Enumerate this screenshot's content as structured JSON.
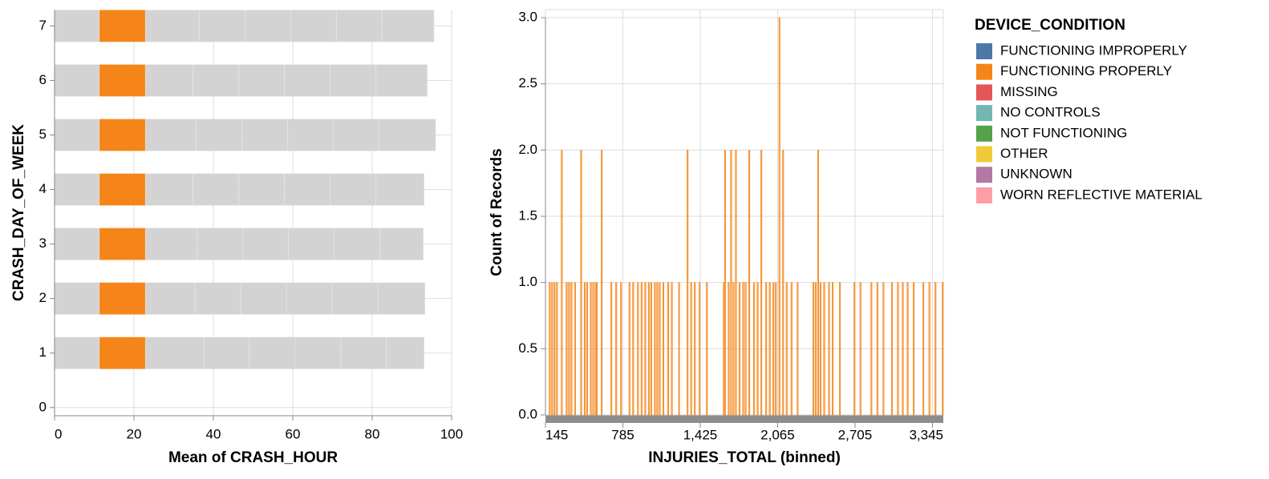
{
  "chart_data": [
    {
      "type": "stacked-bar-horizontal",
      "x_label": "Mean of CRASH_HOUR",
      "y_label": "CRASH_DAY_OF_WEEK",
      "y": [
        1,
        2,
        3,
        4,
        5,
        6,
        7
      ],
      "xlim": [
        0,
        100
      ],
      "xticks": [
        0,
        20,
        40,
        60,
        80,
        100
      ],
      "ylim": [
        -0.15,
        7.3
      ],
      "yticks": [
        0,
        1,
        2,
        3,
        4,
        5,
        6,
        7
      ],
      "grid": true,
      "legend": "right",
      "legend_title": "DEVICE_CONDITION",
      "selected_series": 1,
      "muted_color": "#d3d3d3",
      "series": [
        {
          "name": "FUNCTIONING IMPROPERLY",
          "color": "#4c78a8",
          "values": [
            11.3,
            11.3,
            11.3,
            11.3,
            11.3,
            11.3,
            11.3
          ]
        },
        {
          "name": "FUNCTIONING PROPERLY",
          "color": "#f58518",
          "values": [
            11.6,
            11.6,
            11.6,
            11.6,
            11.6,
            11.6,
            11.6
          ]
        },
        {
          "name": "MISSING",
          "color": "#e45756",
          "values": [
            14.7,
            12.5,
            13.0,
            12.0,
            12.8,
            12.0,
            13.6
          ]
        },
        {
          "name": "NO CONTROLS",
          "color": "#72b7b2",
          "values": [
            11.5,
            11.5,
            11.5,
            11.5,
            11.5,
            11.5,
            11.5
          ]
        },
        {
          "name": "NOT FUNCTIONING",
          "color": "#54a24b",
          "values": [
            11.5,
            11.5,
            11.5,
            11.5,
            11.5,
            11.5,
            11.5
          ]
        },
        {
          "name": "OTHER",
          "color": "#eeca3b",
          "values": [
            11.5,
            11.5,
            11.5,
            11.5,
            11.5,
            11.5,
            11.5
          ]
        },
        {
          "name": "UNKNOWN",
          "color": "#b279a2",
          "values": [
            11.5,
            11.5,
            11.5,
            11.5,
            11.5,
            11.5,
            11.5
          ]
        },
        {
          "name": "WORN REFLECTIVE MATERIAL",
          "color": "#ff9da6",
          "values": [
            9.5,
            11.9,
            11.0,
            12.2,
            14.3,
            13.0,
            13.1
          ]
        }
      ]
    },
    {
      "type": "histogram",
      "x_label": "INJURIES_TOTAL (binned)",
      "y_label": "Count of Records",
      "color": "#f58518",
      "bin_step": 10,
      "grid": true,
      "xlim": [
        145,
        3435
      ],
      "xticks": [
        {
          "value": 145,
          "label": "145"
        },
        {
          "value": 785,
          "label": "785"
        },
        {
          "value": 1425,
          "label": "1,425"
        },
        {
          "value": 2065,
          "label": "2,065"
        },
        {
          "value": 2705,
          "label": "2,705"
        },
        {
          "value": 3345,
          "label": "3,345"
        }
      ],
      "ylim": [
        0,
        3
      ],
      "yticks": [
        {
          "value": 0,
          "label": "0.0"
        },
        {
          "value": 0.5,
          "label": "0.5"
        },
        {
          "value": 1,
          "label": "1.0"
        },
        {
          "value": 1.5,
          "label": "1.5"
        },
        {
          "value": 2,
          "label": "2.0"
        },
        {
          "value": 2.5,
          "label": "2.5"
        },
        {
          "value": 3,
          "label": "3.0"
        }
      ],
      "x": [
        175,
        195,
        215,
        235,
        275,
        315,
        335,
        355,
        385,
        435,
        465,
        485,
        515,
        535,
        555,
        565,
        605,
        685,
        725,
        765,
        835,
        865,
        905,
        935,
        965,
        995,
        1015,
        1045,
        1065,
        1085,
        1115,
        1155,
        1185,
        1245,
        1315,
        1345,
        1375,
        1415,
        1475,
        1615,
        1625,
        1655,
        1675,
        1695,
        1715,
        1745,
        1775,
        1795,
        1825,
        1865,
        1895,
        1925,
        1965,
        1995,
        2025,
        2045,
        2075,
        2105,
        2135,
        2175,
        2225,
        2355,
        2375,
        2395,
        2415,
        2445,
        2485,
        2515,
        2575,
        2695,
        2745,
        2835,
        2885,
        2935,
        3005,
        3055,
        3095,
        3135,
        3185,
        3265,
        3315,
        3365,
        3425
      ],
      "values": [
        1,
        1,
        1,
        1,
        2,
        1,
        1,
        1,
        1,
        2,
        1,
        1,
        1,
        1,
        1,
        1,
        2,
        1,
        1,
        1,
        1,
        1,
        1,
        1,
        1,
        1,
        1,
        1,
        1,
        1,
        1,
        1,
        1,
        1,
        2,
        1,
        1,
        1,
        1,
        1,
        2,
        1,
        2,
        1,
        2,
        1,
        1,
        1,
        2,
        1,
        1,
        2,
        1,
        1,
        1,
        1,
        3,
        2,
        1,
        1,
        1,
        1,
        1,
        2,
        1,
        1,
        1,
        1,
        1,
        1,
        1,
        1,
        1,
        1,
        1,
        1,
        1,
        1,
        1,
        1,
        1,
        1,
        1
      ]
    }
  ]
}
